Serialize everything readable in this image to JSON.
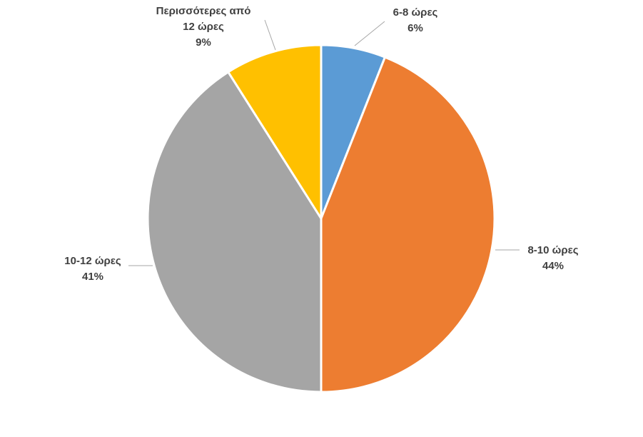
{
  "chart_data": {
    "type": "pie",
    "title": "",
    "start_angle_deg": 0,
    "direction": "clockwise",
    "categories": [
      "6-8 ώρες",
      "8-10 ώρες",
      "10-12 ώρες",
      "Περισσότερες από 12 ώρες"
    ],
    "values": [
      6,
      44,
      41,
      9
    ],
    "value_labels": [
      "6%",
      "44%",
      "41%",
      "9%"
    ],
    "label_lines": [
      [
        "6-8 ώρες"
      ],
      [
        "8-10 ώρες"
      ],
      [
        "10-12 ώρες"
      ],
      [
        "Περισσότερες από",
        "12 ώρες"
      ]
    ],
    "colors": [
      "#5b9bd5",
      "#ed7d31",
      "#a5a5a5",
      "#ffc000"
    ],
    "legend": "none"
  }
}
